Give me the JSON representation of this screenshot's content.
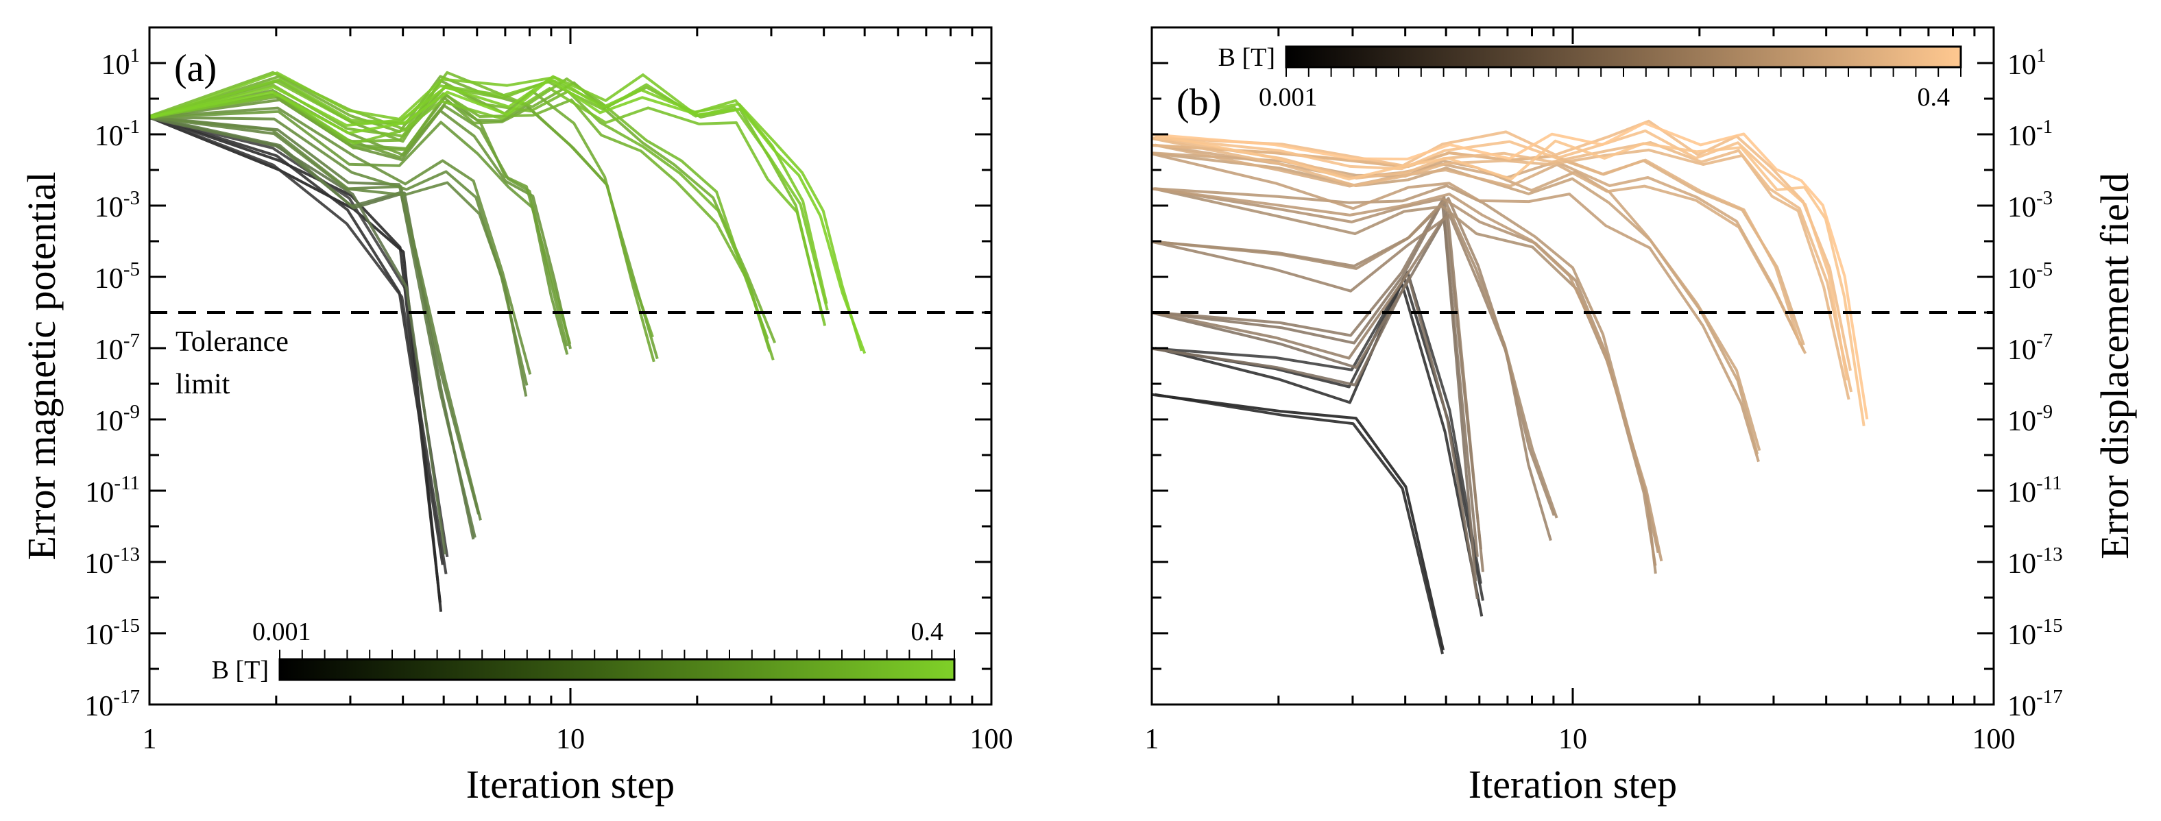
{
  "chart_data": [
    {
      "type": "line",
      "panel_label": "(a)",
      "xlabel": "Iteration step",
      "ylabel": "Error magnetic potential",
      "xscale": "log",
      "yscale": "log",
      "xlim": [
        1,
        100
      ],
      "ylim": [
        1e-17,
        100
      ],
      "x_ticks": [
        "1",
        "10",
        "100"
      ],
      "y_ticks": [
        {
          "base": "10",
          "exp": "1"
        },
        {
          "base": "10",
          "exp": "-1"
        },
        {
          "base": "10",
          "exp": "-3"
        },
        {
          "base": "10",
          "exp": "-5"
        },
        {
          "base": "10",
          "exp": "-7"
        },
        {
          "base": "10",
          "exp": "-9"
        },
        {
          "base": "10",
          "exp": "-11"
        },
        {
          "base": "10",
          "exp": "-13"
        },
        {
          "base": "10",
          "exp": "-15"
        },
        {
          "base": "10",
          "exp": "-17"
        }
      ],
      "tolerance": 1e-06,
      "annotation": [
        "Tolerance",
        "limit"
      ],
      "colorbar": {
        "label": "B [T]",
        "min_label": "0.001",
        "max_label": "0.4",
        "location": "bottom",
        "color_low": "#000000",
        "color_high": "#7fd028"
      },
      "series_count": 30,
      "series_description": "One convergence curve per applied field B from 0.001 T (dark) to 0.4 T (light green); ~30 curves",
      "series": [
        {
          "B": 0.001,
          "x": [
            1,
            2,
            3,
            4,
            5
          ],
          "y": [
            0.3,
            0.01,
            0.0008,
            5e-05,
            4e-15
          ]
        },
        {
          "B": 0.01,
          "x": [
            1,
            2,
            3,
            4,
            5
          ],
          "y": [
            0.3,
            0.03,
            0.001,
            4e-06,
            1e-13
          ]
        },
        {
          "B": 0.03,
          "x": [
            1,
            2,
            3,
            4,
            5,
            6
          ],
          "y": [
            0.3,
            0.08,
            0.002,
            0.003,
            1e-08,
            1e-12
          ]
        },
        {
          "B": 0.06,
          "x": [
            1,
            2,
            3,
            4,
            5,
            6,
            7,
            8
          ],
          "y": [
            0.3,
            0.3,
            0.01,
            0.003,
            0.01,
            0.002,
            1e-05,
            1e-08
          ]
        },
        {
          "B": 0.1,
          "x": [
            1,
            2,
            3,
            4,
            5,
            6,
            7,
            8,
            9,
            10
          ],
          "y": [
            0.3,
            1,
            0.05,
            0.02,
            0.5,
            0.1,
            0.005,
            0.002,
            1e-05,
            1e-07
          ]
        },
        {
          "B": 0.15,
          "x": [
            1,
            2,
            3,
            4,
            5,
            6,
            7,
            8,
            10,
            12,
            14,
            16
          ],
          "y": [
            0.3,
            2,
            0.1,
            0.05,
            2,
            0.5,
            0.3,
            1,
            0.1,
            0.005,
            1e-05,
            1e-07
          ]
        },
        {
          "B": 0.2,
          "x": [
            1,
            2,
            3,
            4,
            5,
            6,
            8,
            10,
            12,
            15,
            18,
            22,
            26,
            30
          ],
          "y": [
            0.3,
            3,
            0.2,
            0.1,
            3,
            1,
            0.5,
            2,
            0.3,
            0.05,
            0.01,
            0.001,
            1e-05,
            1e-07
          ]
        },
        {
          "B": 0.3,
          "x": [
            1,
            2,
            3,
            4,
            5,
            7,
            9,
            12,
            15,
            20,
            25,
            30,
            35,
            40
          ],
          "y": [
            0.3,
            3,
            0.2,
            0.2,
            2,
            1,
            3,
            0.5,
            2,
            0.3,
            0.5,
            0.02,
            0.001,
            1e-06
          ]
        },
        {
          "B": 0.4,
          "x": [
            1,
            2,
            3,
            4,
            5,
            7,
            9,
            12,
            15,
            20,
            25,
            30,
            35,
            40,
            45,
            50
          ],
          "y": [
            0.3,
            3,
            0.3,
            0.3,
            3,
            1,
            5,
            0.8,
            3,
            0.5,
            1,
            0.1,
            0.01,
            0.001,
            1e-05,
            1e-07
          ]
        }
      ]
    },
    {
      "type": "line",
      "panel_label": "(b)",
      "xlabel": "Iteration step",
      "ylabel": "Error displacement field",
      "xscale": "log",
      "yscale": "log",
      "xlim": [
        1,
        100
      ],
      "ylim": [
        1e-17,
        100
      ],
      "x_ticks": [
        "1",
        "10",
        "100"
      ],
      "y_ticks": [
        {
          "base": "10",
          "exp": "1"
        },
        {
          "base": "10",
          "exp": "-1"
        },
        {
          "base": "10",
          "exp": "-3"
        },
        {
          "base": "10",
          "exp": "-5"
        },
        {
          "base": "10",
          "exp": "-7"
        },
        {
          "base": "10",
          "exp": "-9"
        },
        {
          "base": "10",
          "exp": "-11"
        },
        {
          "base": "10",
          "exp": "-13"
        },
        {
          "base": "10",
          "exp": "-15"
        },
        {
          "base": "10",
          "exp": "-17"
        }
      ],
      "tolerance": 1e-06,
      "colorbar": {
        "label": "B [T]",
        "min_label": "0.001",
        "max_label": "0.4",
        "location": "top",
        "color_low": "#000000",
        "color_high": "#ffc890"
      },
      "series_count": 30,
      "series_description": "One convergence curve per applied field B from 0.001 T (dark) to 0.4 T (light peach); ~30 curves",
      "series": [
        {
          "B": 0.001,
          "x": [
            1,
            2,
            3,
            4,
            5
          ],
          "y": [
            5e-09,
            1e-09,
            5e-10,
            1e-11,
            2e-16
          ]
        },
        {
          "B": 0.01,
          "x": [
            1,
            2,
            3,
            4,
            5,
            6
          ],
          "y": [
            1e-07,
            3e-08,
            1e-08,
            1e-05,
            1e-09,
            1e-14
          ]
        },
        {
          "B": 0.03,
          "x": [
            1,
            2,
            3,
            4,
            5,
            6
          ],
          "y": [
            1e-06,
            3e-07,
            1e-07,
            1e-05,
            0.001,
            1e-13
          ]
        },
        {
          "B": 0.06,
          "x": [
            1,
            2,
            3,
            4,
            5,
            6,
            7,
            8,
            9
          ],
          "y": [
            0.0001,
            3e-05,
            1e-05,
            0.0001,
            0.001,
            1e-05,
            1e-07,
            1e-10,
            1e-12
          ]
        },
        {
          "B": 0.1,
          "x": [
            1,
            2,
            3,
            4,
            5,
            6,
            8,
            10,
            12,
            15,
            16
          ],
          "y": [
            0.003,
            0.001,
            0.0005,
            0.001,
            0.002,
            0.0005,
            0.0001,
            1e-05,
            1e-07,
            1e-11,
            1e-13
          ]
        },
        {
          "B": 0.15,
          "x": [
            1,
            2,
            3,
            4,
            5,
            6,
            8,
            10,
            12,
            15,
            20,
            25,
            28
          ],
          "y": [
            0.03,
            0.01,
            0.003,
            0.005,
            0.01,
            0.005,
            0.002,
            0.005,
            0.001,
            0.0001,
            1e-06,
            1e-08,
            1e-10
          ]
        },
        {
          "B": 0.2,
          "x": [
            1,
            2,
            3,
            4,
            5,
            7,
            9,
            12,
            15,
            20,
            25,
            30,
            35
          ],
          "y": [
            0.05,
            0.02,
            0.01,
            0.01,
            0.02,
            0.01,
            0.02,
            0.005,
            0.01,
            0.002,
            0.0005,
            1e-05,
            1e-07
          ]
        },
        {
          "B": 0.3,
          "x": [
            1,
            2,
            3,
            4,
            5,
            7,
            9,
            12,
            15,
            20,
            25,
            30,
            35,
            40,
            45
          ],
          "y": [
            0.08,
            0.03,
            0.01,
            0.01,
            0.03,
            0.05,
            0.02,
            0.05,
            0.1,
            0.02,
            0.05,
            0.005,
            0.001,
            1e-05,
            1e-08
          ]
        },
        {
          "B": 0.4,
          "x": [
            1,
            2,
            3,
            4,
            5,
            7,
            9,
            12,
            15,
            20,
            25,
            30,
            35,
            40,
            45,
            50
          ],
          "y": [
            0.1,
            0.05,
            0.02,
            0.02,
            0.05,
            0.02,
            0.1,
            0.05,
            0.2,
            0.05,
            0.1,
            0.01,
            0.005,
            0.001,
            1e-05,
            1e-09
          ]
        }
      ]
    }
  ]
}
